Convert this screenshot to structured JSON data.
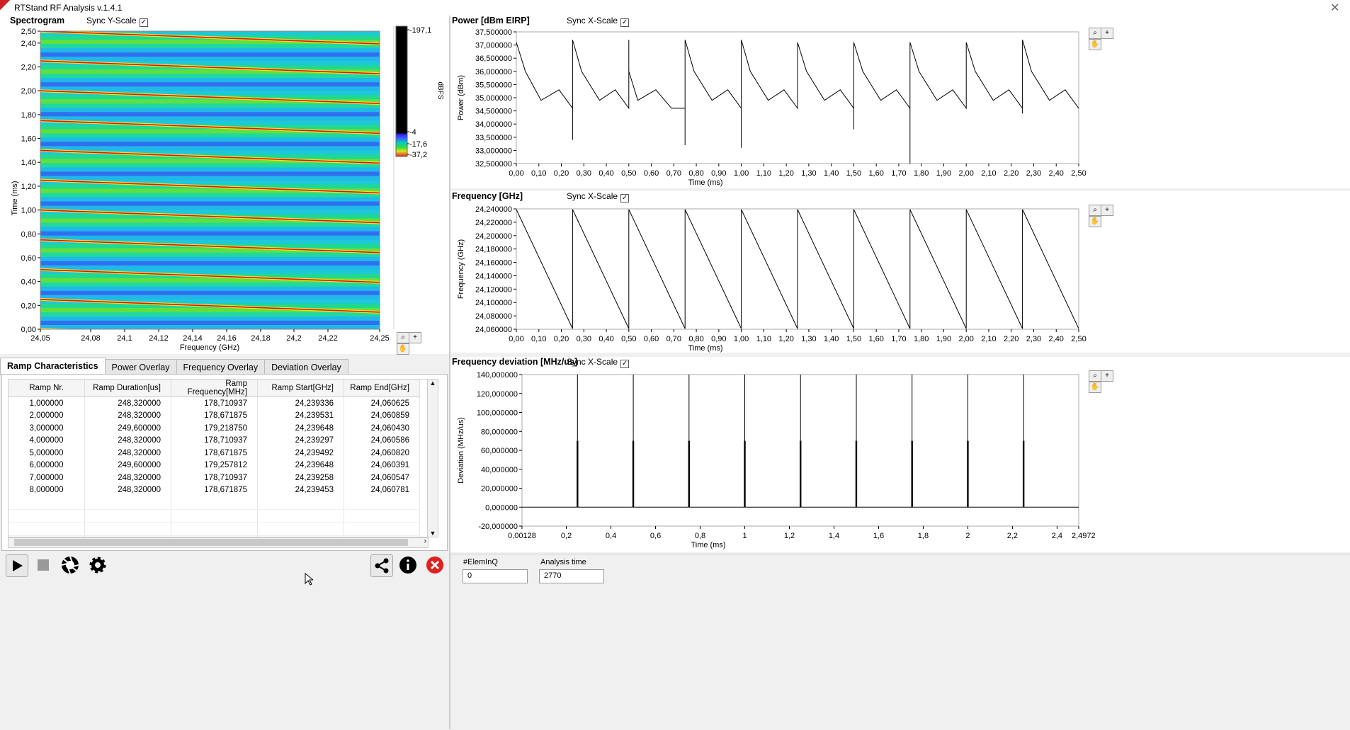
{
  "window": {
    "title": "RTStand RF Analysis v.1.4.1"
  },
  "spectrogram": {
    "title": "Spectrogram",
    "sync_label": "Sync Y-Scale",
    "xlabel": "Frequency (GHz)",
    "ylabel": "Time (ms)",
    "xticks": [
      "24,05",
      "24,08",
      "24,1",
      "24,12",
      "24,14",
      "24,16",
      "24,18",
      "24,2",
      "24,22",
      "24,25"
    ],
    "yticks": [
      "0,00",
      "0,20",
      "0,40",
      "0,60",
      "0,80",
      "1,00",
      "1,20",
      "1,40",
      "1,60",
      "1,80",
      "2,00",
      "2,20",
      "2,40",
      "2,50"
    ],
    "colorbar": {
      "label": "dBFS",
      "ticks": [
        "-197,1",
        "-4",
        "-17,6",
        "-37,2"
      ]
    }
  },
  "power_chart": {
    "title": "Power [dBm EIRP]",
    "sync_label": "Sync X-Scale"
  },
  "frequency_chart": {
    "title": "Frequency [GHz]",
    "sync_label": "Sync X-Scale"
  },
  "deviation_chart": {
    "title": "Frequency deviation [MHz/us]",
    "sync_label": "Sync X-Scale"
  },
  "chart_data": [
    {
      "type": "line",
      "title": "Power [dBm EIRP]",
      "xlabel": "Time (ms)",
      "ylabel": "Power (dBm)",
      "xlim": [
        0,
        2.5
      ],
      "ylim": [
        32.5,
        37.5
      ],
      "xticks": [
        "0,00",
        "0,10",
        "0,20",
        "0,30",
        "0,40",
        "0,50",
        "0,60",
        "0,70",
        "0,80",
        "0,90",
        "1,00",
        "1,10",
        "1,20",
        "1,30",
        "1,40",
        "1,50",
        "1,60",
        "1,70",
        "1,80",
        "1,90",
        "2,00",
        "2,10",
        "2,20",
        "2,30",
        "2,40",
        "2,50"
      ],
      "yticks": [
        "37,500000",
        "37,000000",
        "36,500000",
        "36,000000",
        "35,500000",
        "35,000000",
        "34,500000",
        "34,000000",
        "33,500000",
        "33,000000",
        "32,500000"
      ],
      "series": [
        {
          "x": [
            0,
            0.04,
            0.11,
            0.19,
            0.25,
            0.25,
            0.25,
            0.25,
            0.29,
            0.37,
            0.44,
            0.5,
            0.5,
            0.5,
            0.54,
            0.62,
            0.69,
            0.75,
            0.75,
            0.75,
            0.79,
            0.87,
            0.94,
            1.0,
            1.0,
            1.0,
            1.04,
            1.12,
            1.19,
            1.25,
            1.25,
            1.25,
            1.29,
            1.37,
            1.44,
            1.5,
            1.5,
            1.5,
            1.54,
            1.62,
            1.69,
            1.75,
            1.75,
            1.75,
            1.79,
            1.87,
            1.94,
            2.0,
            2.0,
            2.0,
            2.04,
            2.12,
            2.19,
            2.25,
            2.25,
            2.25,
            2.29,
            2.37,
            2.44,
            2.5
          ],
          "values": [
            37.1,
            36.0,
            34.9,
            35.3,
            34.6,
            33.4,
            34.6,
            37.2,
            36.0,
            34.9,
            35.3,
            34.6,
            37.2,
            36.0,
            34.9,
            35.3,
            34.6,
            34.6,
            33.2,
            37.2,
            36.0,
            34.9,
            35.3,
            34.6,
            33.1,
            37.2,
            36.0,
            34.9,
            35.3,
            34.6,
            34.6,
            37.1,
            36.0,
            34.9,
            35.3,
            34.6,
            33.8,
            37.1,
            36.0,
            34.9,
            35.3,
            34.6,
            32.5,
            37.1,
            36.0,
            34.9,
            35.3,
            34.6,
            34.6,
            37.1,
            36.0,
            34.9,
            35.3,
            34.6,
            34.4,
            37.2,
            36.0,
            34.9,
            35.3,
            34.6
          ]
        }
      ]
    },
    {
      "type": "line",
      "title": "Frequency [GHz]",
      "xlabel": "Time (ms)",
      "ylabel": "Frequency (GHz)",
      "xlim": [
        0,
        2.5
      ],
      "ylim": [
        24.06,
        24.24
      ],
      "xticks": [
        "0,00",
        "0,10",
        "0,20",
        "0,30",
        "0,40",
        "0,50",
        "0,60",
        "0,70",
        "0,80",
        "0,90",
        "1,00",
        "1,10",
        "1,20",
        "1,30",
        "1,40",
        "1,50",
        "1,60",
        "1,70",
        "1,80",
        "1,90",
        "2,00",
        "2,10",
        "2,20",
        "2,30",
        "2,40",
        "2,50"
      ],
      "yticks": [
        "24,240000",
        "24,220000",
        "24,200000",
        "24,180000",
        "24,160000",
        "24,140000",
        "24,120000",
        "24,100000",
        "24,080000",
        "24,060000"
      ],
      "series": [
        {
          "x": [
            0,
            0.25,
            0.25,
            0.5,
            0.5,
            0.75,
            0.75,
            1.0,
            1.0,
            1.25,
            1.25,
            1.5,
            1.5,
            1.75,
            1.75,
            2.0,
            2.0,
            2.25,
            2.25,
            2.5
          ],
          "values": [
            24.239,
            24.061,
            24.239,
            24.061,
            24.239,
            24.061,
            24.239,
            24.061,
            24.239,
            24.061,
            24.239,
            24.061,
            24.239,
            24.061,
            24.239,
            24.061,
            24.239,
            24.061,
            24.239,
            24.061
          ]
        }
      ]
    },
    {
      "type": "line",
      "title": "Frequency deviation [MHz/us]",
      "xlabel": "Time (ms)",
      "ylabel": "Deviation (MHz/us)",
      "xlim": [
        0.00128,
        2.4972
      ],
      "ylim": [
        -20,
        140
      ],
      "xticks": [
        "0,00128",
        "0,2",
        "0,4",
        "0,6",
        "0,8",
        "1",
        "1,2",
        "1,4",
        "1,6",
        "1,8",
        "2",
        "2,2",
        "2,4",
        "2,4972"
      ],
      "yticks": [
        "140,000000",
        "120,000000",
        "100,000000",
        "80,000000",
        "60,000000",
        "40,000000",
        "20,000000",
        "0,000000",
        "-20,000000"
      ],
      "series": [
        {
          "x": [
            0.00128,
            0.25,
            0.25,
            0.25,
            0.5,
            0.5,
            0.5,
            0.75,
            0.75,
            0.75,
            1.0,
            1.0,
            1.0,
            1.25,
            1.25,
            1.25,
            1.5,
            1.5,
            1.5,
            1.75,
            1.75,
            1.75,
            2.0,
            2.0,
            2.0,
            2.25,
            2.25,
            2.25,
            2.4972
          ],
          "values": [
            0,
            0,
            140,
            0,
            0,
            140,
            0,
            0,
            140,
            0,
            0,
            140,
            0,
            0,
            140,
            0,
            0,
            140,
            0,
            0,
            140,
            0,
            0,
            140,
            0,
            0,
            140,
            0,
            0
          ]
        }
      ]
    }
  ],
  "tabs": [
    "Ramp Characteristics",
    "Power Overlay",
    "Frequency Overlay",
    "Deviation Overlay"
  ],
  "ramp_table": {
    "headers": [
      "Ramp Nr.",
      "Ramp Duration[us]",
      "Ramp Frequency[MHz]",
      "Ramp Start[GHz]",
      "Ramp End[GHz]"
    ],
    "rows": [
      [
        "1,000000",
        "248,320000",
        "178,710937",
        "24,239336",
        "24,060625"
      ],
      [
        "2,000000",
        "248,320000",
        "178,671875",
        "24,239531",
        "24,060859"
      ],
      [
        "3,000000",
        "249,600000",
        "179,218750",
        "24,239648",
        "24,060430"
      ],
      [
        "4,000000",
        "248,320000",
        "178,710937",
        "24,239297",
        "24,060586"
      ],
      [
        "5,000000",
        "248,320000",
        "178,671875",
        "24,239492",
        "24,060820"
      ],
      [
        "6,000000",
        "249,600000",
        "179,257812",
        "24,239648",
        "24,060391"
      ],
      [
        "7,000000",
        "248,320000",
        "178,710937",
        "24,239258",
        "24,060547"
      ],
      [
        "8,000000",
        "248,320000",
        "178,671875",
        "24,239453",
        "24,060781"
      ]
    ]
  },
  "status": {
    "elem_label": "#ElemInQ",
    "elem_value": "0",
    "time_label": "Analysis time",
    "time_value": "2770"
  },
  "colors": {
    "trace": "#000000",
    "close_red": "#e02020"
  }
}
